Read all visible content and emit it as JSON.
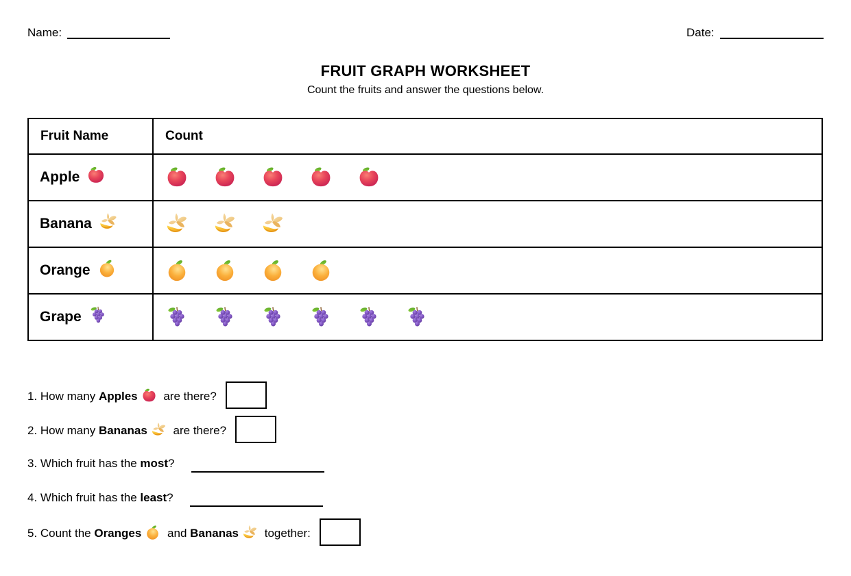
{
  "title": "FRUIT GRAPH WORKSHEET",
  "subtitle": "Count the fruits and answer the questions below.",
  "header": {
    "name_label": "Name:",
    "date_label": "Date:"
  },
  "table": {
    "columns": [
      "Fruit Name",
      "Count"
    ],
    "rows": [
      {
        "fruit": "Apple",
        "icon": "apple",
        "count": 5
      },
      {
        "fruit": "Banana",
        "icon": "banana",
        "count": 3
      },
      {
        "fruit": "Orange",
        "icon": "orange",
        "count": 4
      },
      {
        "fruit": "Grape",
        "icon": "grape",
        "count": 6
      }
    ]
  },
  "questions": [
    {
      "segments": [
        {
          "text": "1. How many "
        },
        {
          "text": "Apples",
          "bold": true
        },
        {
          "icon": "apple"
        },
        {
          "text": " are there?"
        }
      ],
      "answer": "box"
    },
    {
      "segments": [
        {
          "text": "2. How many "
        },
        {
          "text": "Bananas",
          "bold": true
        },
        {
          "icon": "banana"
        },
        {
          "text": " are there?"
        }
      ],
      "answer": "box"
    },
    {
      "segments": [
        {
          "text": "3. Which fruit has the "
        },
        {
          "text": "most",
          "bold": true
        },
        {
          "text": "?"
        }
      ],
      "answer": "line"
    },
    {
      "segments": [
        {
          "text": "4. Which fruit has the "
        },
        {
          "text": "least",
          "bold": true
        },
        {
          "text": "?"
        }
      ],
      "answer": "line"
    },
    {
      "segments": [
        {
          "text": "5. Count the "
        },
        {
          "text": "Oranges",
          "bold": true
        },
        {
          "icon": "orange"
        },
        {
          "text": " and "
        },
        {
          "text": "Bananas",
          "bold": true
        },
        {
          "icon": "banana"
        },
        {
          "text": " together:"
        }
      ],
      "answer": "box"
    }
  ],
  "icons": {
    "apple": "apple-icon",
    "banana": "banana-icon",
    "orange": "orange-icon",
    "grape": "grape-icon"
  },
  "colors": {
    "apple": "#d92a52",
    "banana": "#f2a93b",
    "orange": "#f5a030",
    "grape": "#7b50bd",
    "leaf": "#6cbf2e",
    "table_border": "#000000",
    "text": "#000000",
    "page_background": "#ffffff"
  },
  "chart_data": {
    "type": "bar",
    "categories": [
      "Apple",
      "Banana",
      "Orange",
      "Grape"
    ],
    "values": [
      5,
      3,
      4,
      6
    ],
    "title": "FRUIT GRAPH WORKSHEET",
    "xlabel": "Fruit Name",
    "ylabel": "Count"
  }
}
